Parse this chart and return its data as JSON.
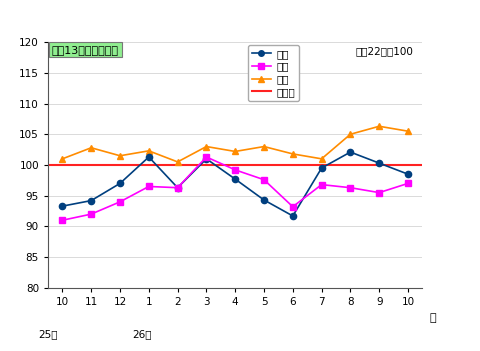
{
  "x_labels": [
    "10",
    "11",
    "12",
    "1",
    "2",
    "3",
    "4",
    "5",
    "6",
    "7",
    "8",
    "9",
    "10"
  ],
  "x_positions": [
    0,
    1,
    2,
    3,
    4,
    5,
    6,
    7,
    8,
    9,
    10,
    11,
    12
  ],
  "production": [
    93.3,
    94.2,
    97.0,
    101.3,
    96.3,
    101.0,
    97.7,
    94.3,
    91.7,
    99.5,
    102.1,
    100.3,
    98.5
  ],
  "shipment": [
    91.0,
    92.0,
    94.0,
    96.5,
    96.3,
    101.3,
    99.2,
    97.6,
    93.2,
    96.8,
    96.3,
    95.5,
    97.0
  ],
  "inventory": [
    101.0,
    102.8,
    101.5,
    102.3,
    100.5,
    103.0,
    102.2,
    103.0,
    101.8,
    101.0,
    105.0,
    106.3,
    105.5
  ],
  "baseline": 100.0,
  "ylim": [
    80,
    120
  ],
  "yticks": [
    80,
    85,
    90,
    95,
    100,
    105,
    110,
    115,
    120
  ],
  "production_color": "#003f7f",
  "shipment_color": "#ff00ff",
  "inventory_color": "#ff8c00",
  "baseline_color": "#ff2222",
  "box_label": "最近13か月間の動き",
  "box_bg": "#90ee90",
  "legend_note": "平成22年＝100",
  "year25_label": "25年",
  "year26_label": "26年",
  "month_label": "月",
  "legend_entries": [
    "生産",
    "出荷",
    "在庫",
    "基準値"
  ],
  "bg_color": "#ffffff",
  "plot_bg": "#f5f5f5"
}
